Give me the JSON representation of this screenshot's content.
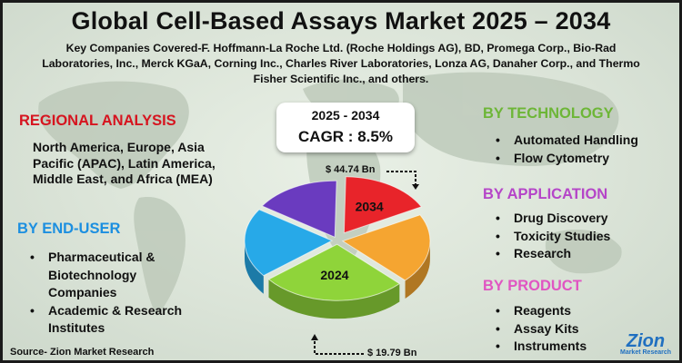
{
  "title": "Global Cell-Based Assays Market 2025 – 2034",
  "subtitle": "Key Companies Covered-F. Hoffmann-La Roche Ltd. (Roche Holdings AG), BD, Promega Corp., Bio-Rad Laboratories, Inc., Merck KGaA, Corning Inc., Charles River Laboratories, Lonza AG, Danaher Corp., and Thermo Fisher Scientific Inc., and others.",
  "regional": {
    "heading": "REGIONAL ANALYSIS",
    "text": "North America, Europe, Asia Pacific (APAC), Latin America, Middle East, and Africa (MEA)"
  },
  "end_user": {
    "heading": "BY END-USER",
    "items": [
      "Pharmaceutical & Biotechnology Companies",
      "Academic & Research Institutes"
    ]
  },
  "technology": {
    "heading": "BY TECHNOLOGY",
    "items": [
      "Automated Handling",
      "Flow Cytometry"
    ]
  },
  "application": {
    "heading": "BY APPLICATION",
    "items": [
      "Drug Discovery",
      "Toxicity Studies",
      "Research"
    ]
  },
  "product": {
    "heading": "BY PRODUCT",
    "items": [
      "Reagents",
      "Assay Kits",
      "Instruments"
    ]
  },
  "cagr": {
    "years": "2025 - 2034",
    "label": "CAGR : 8.5%"
  },
  "source": "Source- Zion Market Research",
  "logo": {
    "word": "Zion",
    "sub": "Market Research"
  },
  "colors": {
    "red": "#d6141f",
    "blue": "#1c8fe0",
    "green": "#6db637",
    "purple": "#b546c8",
    "pink": "#e055c2"
  },
  "chart_data": {
    "type": "pie",
    "style": "3d-exploded",
    "slices": [
      {
        "label": "2034",
        "color": "#e8242a",
        "value": 17
      },
      {
        "label": "",
        "color": "#f5a531",
        "value": 20
      },
      {
        "label": "2024",
        "color": "#8fd43a",
        "value": 27
      },
      {
        "label": "",
        "color": "#27a9e8",
        "value": 20
      },
      {
        "label": "",
        "color": "#6a3bbf",
        "value": 16
      }
    ],
    "annotations": [
      {
        "text": "$ 44.74 Bn",
        "points_to": "2034"
      },
      {
        "text": "$ 19.79 Bn",
        "points_to": "2024"
      }
    ]
  }
}
